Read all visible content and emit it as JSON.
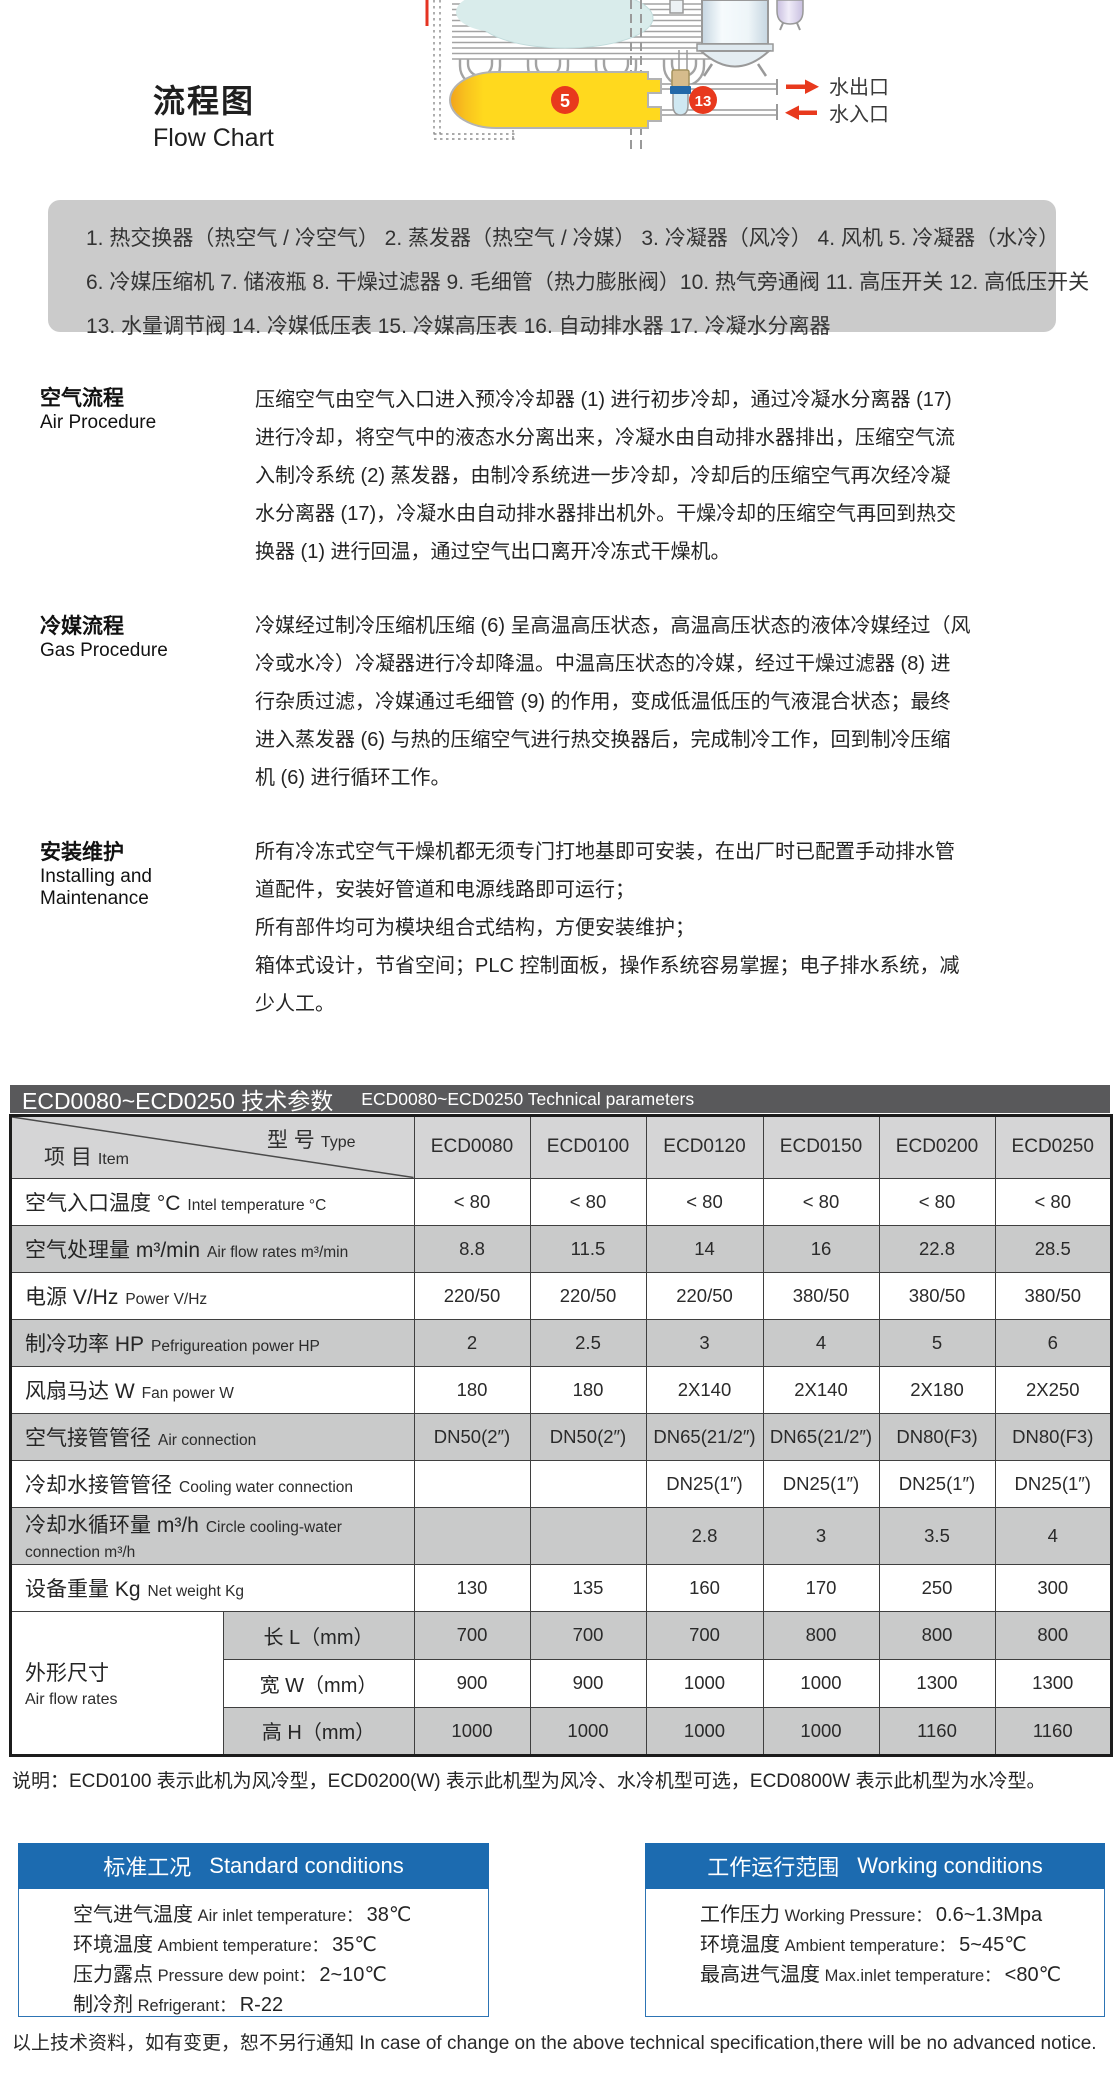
{
  "colors": {
    "accent_blue": "#1C6BB0",
    "bar_gray": "#59595B",
    "row_gray": "#C9CACA",
    "red": "#E8391D",
    "yellow": "#FFD91E"
  },
  "flow": {
    "title_zh": "流程图",
    "title_en": "Flow Chart"
  },
  "diagram": {
    "label_5": "5",
    "label_13": "13",
    "water_outlet": "水出口",
    "water_inlet": "水入口"
  },
  "legend": {
    "lines": [
      "1. 热交换器（热空气 / 冷空气）  2. 蒸发器（热空气 / 冷媒）  3. 冷凝器（风冷）  4. 风机  5. 冷凝器（水冷）",
      "6. 冷媒压缩机  7. 储液瓶  8. 干燥过滤器  9. 毛细管（热力膨胀阀）10. 热气旁通阀  11. 高压开关  12. 高低压开关",
      "13. 水量调节阀  14. 冷媒低压表 15. 冷媒高压表  16. 自动排水器  17. 冷凝水分离器"
    ]
  },
  "sections": [
    {
      "zh": "空气流程",
      "en": "Air Procedure",
      "body": "压缩空气由空气入口进入预冷冷却器 (1) 进行初步冷却，通过冷凝水分离器 (17)\n进行冷却，将空气中的液态水分离出来，冷凝水由自动排水器排出，压缩空气流\n入制冷系统 (2) 蒸发器，由制冷系统进一步冷却，冷却后的压缩空气再次经冷凝\n水分离器 (17)，冷凝水由自动排水器排出机外。干燥冷却的压缩空气再回到热交\n换器 (1) 进行回温，通过空气出口离开冷冻式干燥机。"
    },
    {
      "zh": "冷媒流程",
      "en": "Gas Procedure",
      "body": "冷媒经过制冷压缩机压缩 (6) 呈高温高压状态，高温高压状态的液体冷媒经过（风\n冷或水冷）冷凝器进行冷却降温。中温高压状态的冷媒，经过干燥过滤器 (8) 进\n行杂质过滤，冷媒通过毛细管 (9) 的作用，变成低温低压的气液混合状态；最终\n进入蒸发器 (6) 与热的压缩空气进行热交换器后，完成制冷工作，回到制冷压缩\n机 (6) 进行循环工作。"
    },
    {
      "zh": "安装维护",
      "en": "Installing and\nMaintenance",
      "body": "所有冷冻式空气干燥机都无须专门打地基即可安装，在出厂时已配置手动排水管\n道配件，安装好管道和电源线路即可运行；\n所有部件均可为模块组合式结构，方便安装维护；\n箱体式设计，节省空间；PLC 控制面板，操作系统容易掌握；电子排水系统，减\n少人工。"
    }
  ],
  "table": {
    "title_zh": "ECD0080~ECD0250 技术参数",
    "title_en": "ECD0080~ECD0250 Technical parameters",
    "corner": {
      "item_zh": "项 目",
      "item_en": "Item",
      "type_zh": "型 号",
      "type_en": "Type"
    },
    "models": [
      "ECD0080",
      "ECD0100",
      "ECD0120",
      "ECD0150",
      "ECD0200",
      "ECD0250"
    ],
    "rows": [
      {
        "zh": "空气入口温度 °C",
        "en": "Intel temperature °C",
        "shaded": false,
        "values": [
          "< 80",
          "< 80",
          "< 80",
          "< 80",
          "< 80",
          "< 80"
        ]
      },
      {
        "zh": "空气处理量 m³/min",
        "en": "Air flow rates m³/min",
        "shaded": true,
        "values": [
          "8.8",
          "11.5",
          "14",
          "16",
          "22.8",
          "28.5"
        ]
      },
      {
        "zh": "电源 V/Hz",
        "en": "Power V/Hz",
        "shaded": false,
        "values": [
          "220/50",
          "220/50",
          "220/50",
          "380/50",
          "380/50",
          "380/50"
        ]
      },
      {
        "zh": "制冷功率 HP",
        "en": "Pefrigureation power HP",
        "shaded": true,
        "values": [
          "2",
          "2.5",
          "3",
          "4",
          "5",
          "6"
        ]
      },
      {
        "zh": "风扇马达 W",
        "en": "Fan power  W",
        "shaded": false,
        "values": [
          "180",
          "180",
          "2X140",
          "2X140",
          "2X180",
          "2X250"
        ]
      },
      {
        "zh": "空气接管管径",
        "en": "Air connection",
        "shaded": true,
        "values": [
          "DN50(2″)",
          "DN50(2″)",
          "DN65(21/2″)",
          "DN65(21/2″)",
          "DN80(F3)",
          "DN80(F3)"
        ]
      },
      {
        "zh": "冷却水接管管径",
        "en": "Cooling water connection",
        "shaded": false,
        "values": [
          "",
          "",
          "DN25(1″)",
          "DN25(1″)",
          "DN25(1″)",
          "DN25(1″)"
        ]
      },
      {
        "zh": "冷却水循环量 m³/h",
        "en": "Circle cooling-water connection m³/h",
        "shaded": true,
        "values": [
          "",
          "",
          "2.8",
          "3",
          "3.5",
          "4"
        ]
      },
      {
        "zh": "设备重量 Kg",
        "en": "Net weight Kg",
        "shaded": false,
        "values": [
          "130",
          "135",
          "160",
          "170",
          "250",
          "300"
        ]
      }
    ],
    "dim": {
      "zh": "外形尺寸",
      "en": "Air flow rates",
      "rows": [
        {
          "label": "长 L（mm）",
          "shaded": true,
          "values": [
            "700",
            "700",
            "700",
            "800",
            "800",
            "800"
          ]
        },
        {
          "label": "宽 W（mm）",
          "shaded": false,
          "values": [
            "900",
            "900",
            "1000",
            "1000",
            "1300",
            "1300"
          ]
        },
        {
          "label": "高 H（mm）",
          "shaded": true,
          "values": [
            "1000",
            "1000",
            "1000",
            "1000",
            "1160",
            "1160"
          ]
        }
      ]
    }
  },
  "note": "说明：ECD0100 表示此机为风冷型，ECD0200(W) 表示此机型为风冷、水冷机型可选，ECD0800W 表示此机型为水冷型。",
  "boxes": [
    {
      "title_zh": "标准工况",
      "title_en": "Standard conditions",
      "rows": [
        {
          "zh": "空气进气温度",
          "en": "Air inlet temperature",
          "value": "38℃"
        },
        {
          "zh": "环境温度",
          "en": "Ambient temperature",
          "value": "35℃"
        },
        {
          "zh": "压力露点",
          "en": "Pressure dew point",
          "value": "2~10℃"
        },
        {
          "zh": "制冷剂",
          "en": "Refrigerant",
          "value": "R-22"
        }
      ]
    },
    {
      "title_zh": "工作运行范围",
      "title_en": "Working conditions",
      "rows": [
        {
          "zh": "工作压力",
          "en": "Working Pressure",
          "value": "0.6~1.3Mpa"
        },
        {
          "zh": "环境温度",
          "en": "Ambient temperature",
          "value": "5~45℃"
        },
        {
          "zh": "最高进气温度",
          "en": "Max.inlet temperature",
          "value": "<80℃"
        }
      ]
    }
  ],
  "footer": "以上技术资料，如有变更，恕不另行通知 In case of change on the above technical specification,there will be no advanced notice."
}
